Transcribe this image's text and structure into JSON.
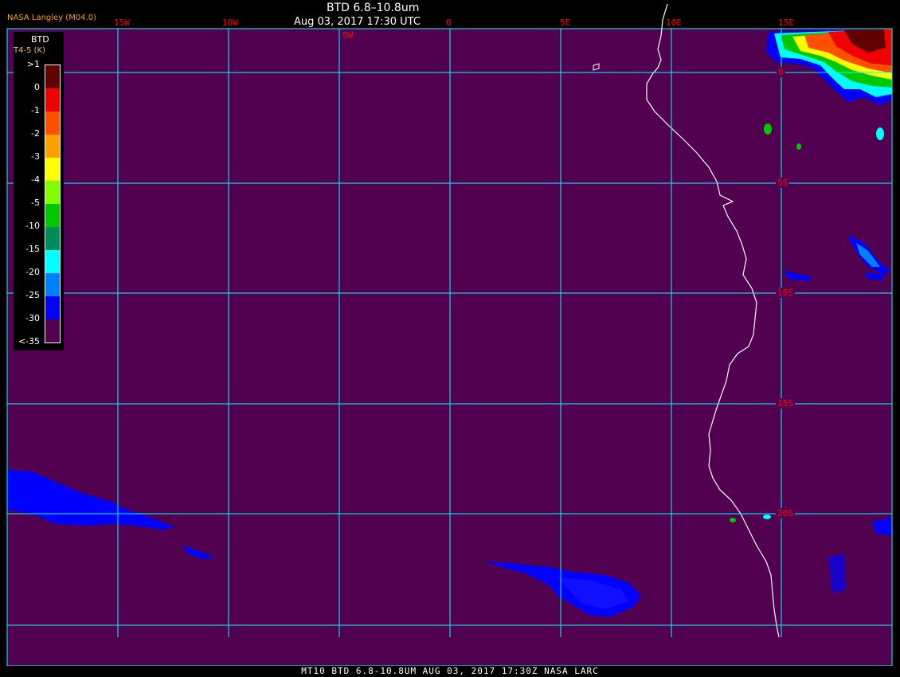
{
  "header": {
    "title": "BTD 6.8–10.8um",
    "datetime": "Aug 03, 2017 17:30 UTC",
    "brand": "NASA Langley (M04.0)"
  },
  "footer": "MT10  BTD 6.8-10.8UM   AUG 03, 2017 17:30Z   NASA LARC",
  "grid": {
    "longitude_labels": [
      "15W",
      "10W",
      "5W",
      "0",
      "5E",
      "10E",
      "15E"
    ],
    "latitude_labels": [
      "0",
      "5S",
      "10S",
      "15S",
      "20S"
    ],
    "line_color": "#00ffff"
  },
  "legend": {
    "title": "BTD",
    "unit": "T4-5 (K)",
    "labels": [
      ">1",
      "0",
      "-1",
      "-2",
      "-3",
      "-4",
      "-5",
      "-10",
      "-15",
      "-20",
      "-25",
      "-30",
      "<-35"
    ],
    "colors": [
      "#600000",
      "#f00000",
      "#ff5000",
      "#ffa000",
      "#ffff00",
      "#80ff00",
      "#00c800",
      "#008c5a",
      "#00ffff",
      "#0080ff",
      "#0000ff",
      "#520050"
    ]
  },
  "colors": {
    "background": "#520050",
    "coastline": "#ffffff"
  }
}
